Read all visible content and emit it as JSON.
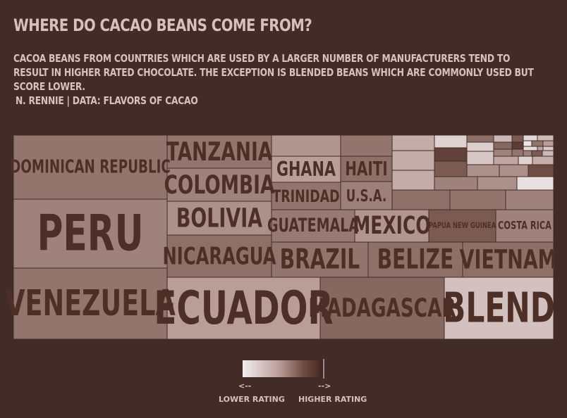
{
  "header": {
    "title": "WHERE DO CACAO BEANS COME FROM?",
    "subtitle": "CACOA BEANS FROM COUNTRIES WHICH ARE USED BY A LARGER NUMBER OF MANUFACTURERS TEND TO RESULT IN HIGHER RATED CHOCOLATE. THE EXCEPTION IS BLENDED BEANS WHICH ARE COMMONLY USED BUT SCORE LOWER.",
    "caption": "N. RENNIE  |  DATA: FLAVORS OF CACAO"
  },
  "colors": {
    "background": "#412c27",
    "text": "#d7c1ba",
    "label": "#4e2f28",
    "scale_low": "#f3eeee",
    "scale_high": "#3f231f"
  },
  "chart_data": {
    "type": "treemap",
    "title": "WHERE DO CACAO BEANS COME FROM?",
    "legend": {
      "low_arrow": "<--",
      "high_arrow": "-->",
      "low_label": "LOWER RATING",
      "high_label": "HIGHER RATING",
      "placement": "bottom-center"
    },
    "nodes": [
      {
        "label": "PERU",
        "count": 200,
        "rating": 0.55
      },
      {
        "label": "VENEZUELA",
        "count": 180,
        "rating": 0.6
      },
      {
        "label": "DOMINICAN REPUBLIC",
        "count": 170,
        "rating": 0.6
      },
      {
        "label": "ECUADOR",
        "count": 185,
        "rating": 0.45
      },
      {
        "label": "MADAGASCAR",
        "count": 165,
        "rating": 0.65
      },
      {
        "label": "BLEND",
        "count": 145,
        "rating": 0.25
      },
      {
        "label": "TANZANIA",
        "count": 56,
        "rating": 0.6
      },
      {
        "label": "COLOMBIA",
        "count": 56,
        "rating": 0.55
      },
      {
        "label": "BOLIVIA",
        "count": 56,
        "rating": 0.5
      },
      {
        "label": "NICARAGUA",
        "count": 70,
        "rating": 0.62
      },
      {
        "label": "BRAZIL",
        "count": 46,
        "rating": 0.6
      },
      {
        "label": "BELIZE",
        "count": 46,
        "rating": 0.62
      },
      {
        "label": "VIETNAM",
        "count": 44,
        "rating": 0.62
      },
      {
        "label": "GUATEMALA",
        "count": 42,
        "rating": 0.58
      },
      {
        "label": "MEXICO",
        "count": 35,
        "rating": 0.48
      },
      {
        "label": "PAPUA NEW GUINEA",
        "count": 33,
        "rating": 0.7
      },
      {
        "label": "COSTA RICA",
        "count": 27,
        "rating": 0.55
      },
      {
        "label": "GHANA",
        "count": 15,
        "rating": 0.45
      },
      {
        "label": "TRINIDAD",
        "count": 13,
        "rating": 0.6
      },
      {
        "label": "HAITI",
        "count": 12,
        "rating": 0.62
      },
      {
        "label": "U.S.A.",
        "count": 12,
        "rating": 0.56
      },
      {
        "label": "",
        "count": 10,
        "rating": 0.48
      },
      {
        "label": "",
        "count": 10,
        "rating": 0.6
      }
    ],
    "small_nodes": [
      {
        "rating": 0.36
      },
      {
        "rating": 0.36
      },
      {
        "rating": 0.36
      },
      {
        "rating": 0.62
      },
      {
        "rating": 0.6
      },
      {
        "rating": 0.55
      },
      {
        "rating": 0.55
      },
      {
        "rating": 0.15
      },
      {
        "rating": 0.82
      },
      {
        "rating": 0.7
      },
      {
        "rating": 0.5
      },
      {
        "rating": 0.5
      },
      {
        "rating": 0.5
      },
      {
        "rating": 0.75
      },
      {
        "rating": 0.08
      },
      {
        "rating": 0.62
      },
      {
        "rating": 0.18
      },
      {
        "rating": 0.22
      },
      {
        "rating": 0.3
      },
      {
        "rating": 0.65
      },
      {
        "rating": 0.55
      },
      {
        "rating": 0.4
      },
      {
        "rating": 0.7
      },
      {
        "rating": 0.12
      },
      {
        "rating": 0.28
      },
      {
        "rating": 0.05
      },
      {
        "rating": 0.6
      },
      {
        "rating": 0.45
      },
      {
        "rating": 0.85
      },
      {
        "rating": 0.1
      },
      {
        "rating": 0.4
      },
      {
        "rating": 0.2
      },
      {
        "rating": 0.55
      },
      {
        "rating": 0.7
      },
      {
        "rating": 0.3
      },
      {
        "rating": 0.6
      },
      {
        "rating": 0.15
      },
      {
        "rating": 0.35
      }
    ]
  }
}
